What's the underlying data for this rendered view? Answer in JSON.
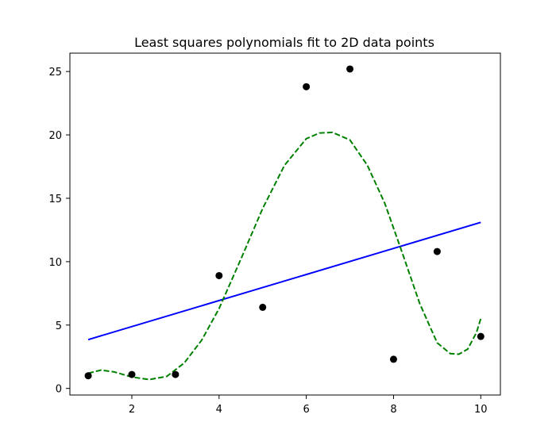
{
  "chart_data": {
    "type": "scatter",
    "title": "Least squares polynomials fit to 2D data points",
    "xlabel": "",
    "ylabel": "",
    "xlim": [
      0.58,
      10.45
    ],
    "ylim": [
      -0.52,
      26.45
    ],
    "x_ticks": [
      2,
      4,
      6,
      8,
      10
    ],
    "y_ticks": [
      0,
      5,
      10,
      15,
      20,
      25
    ],
    "grid": false,
    "points": {
      "color": "#000000",
      "x": [
        1,
        2,
        3,
        4,
        5,
        6,
        7,
        8,
        9,
        10
      ],
      "y": [
        1.0,
        1.1,
        1.1,
        8.9,
        6.4,
        23.8,
        25.2,
        2.3,
        10.8,
        4.1
      ]
    },
    "series": [
      {
        "style": "solid",
        "color": "#0000ff",
        "x": [
          1,
          10
        ],
        "y": [
          3.85,
          13.1
        ]
      },
      {
        "style": "dashed",
        "color": "#008000",
        "x": [
          1.0,
          1.3,
          1.6,
          2.0,
          2.4,
          2.8,
          3.2,
          3.6,
          4.0,
          4.5,
          5.0,
          5.5,
          6.0,
          6.3,
          6.6,
          7.0,
          7.4,
          7.8,
          8.2,
          8.6,
          9.0,
          9.3,
          9.5,
          9.7,
          9.9,
          10.0
        ],
        "y": [
          1.2,
          1.45,
          1.3,
          0.9,
          0.7,
          0.95,
          2.0,
          3.8,
          6.3,
          10.2,
          14.2,
          17.6,
          19.7,
          20.15,
          20.2,
          19.6,
          17.6,
          14.6,
          10.7,
          6.7,
          3.6,
          2.75,
          2.7,
          3.1,
          4.4,
          5.5
        ]
      }
    ]
  }
}
